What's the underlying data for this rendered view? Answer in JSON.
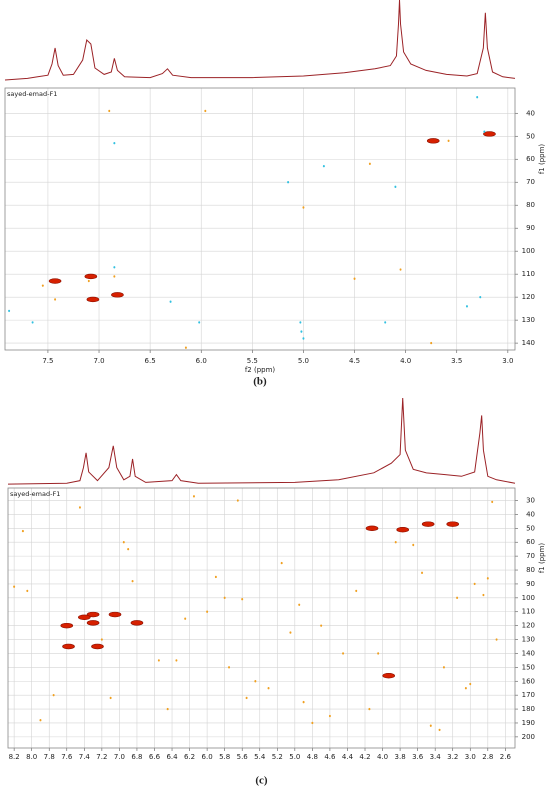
{
  "chart_data": [
    {
      "type": "scatter",
      "title": "sayed-emad-F1",
      "panel_label": "(b)",
      "xlabel": "f2 (ppm)",
      "ylabel": "f1 (ppm)",
      "xlim": [
        7.92,
        2.93
      ],
      "ylim": [
        29,
        143
      ],
      "xticks": [
        7.5,
        {
          "value": 7,
          "label": "7.0"
        },
        6.5,
        {
          "value": 6,
          "label": "6.0"
        },
        5.5,
        {
          "value": 5,
          "label": "5.0"
        },
        4.5,
        {
          "value": 4,
          "label": "4.0"
        },
        3.5,
        {
          "value": 3,
          "label": "3.0"
        }
      ],
      "yticks": [
        40,
        50,
        60,
        70,
        80,
        90,
        100,
        110,
        120,
        130,
        140
      ],
      "grid": true,
      "projection": {
        "color": "#9b2226",
        "ylim": [
          0,
          100
        ],
        "x": [
          7.92,
          7.7,
          7.6,
          7.5,
          7.46,
          7.43,
          7.4,
          7.35,
          7.25,
          7.16,
          7.12,
          7.08,
          7.04,
          6.95,
          6.88,
          6.85,
          6.82,
          6.75,
          6.5,
          6.38,
          6.33,
          6.28,
          6.1,
          5.5,
          5.0,
          4.6,
          4.3,
          4.15,
          4.09,
          4.07,
          4.06,
          4.05,
          4.02,
          3.95,
          3.8,
          3.6,
          3.4,
          3.3,
          3.24,
          3.22,
          3.2,
          3.15,
          3.05,
          2.93
        ],
        "values": [
          0,
          2,
          4,
          6,
          20,
          40,
          18,
          6,
          7,
          25,
          50,
          45,
          15,
          7,
          10,
          27,
          12,
          4,
          3,
          8,
          14,
          6,
          3,
          3,
          5,
          9,
          14,
          18,
          30,
          70,
          100,
          70,
          35,
          20,
          12,
          7,
          5,
          8,
          40,
          84,
          40,
          10,
          4,
          2
        ]
      },
      "series": [
        {
          "color": "#d62000",
          "marker": "ellipse",
          "x": [
            7.43,
            7.08,
            7.06,
            6.82,
            3.73,
            3.18
          ],
          "values": [
            113,
            111,
            121,
            119,
            52,
            49
          ]
        },
        {
          "color": "#f0a020",
          "marker": "dot",
          "x": [
            7.43,
            6.9,
            5.96,
            6.85,
            7.1,
            4.35,
            4.05,
            5.0,
            4.5,
            3.75,
            6.15,
            7.55,
            3.58
          ],
          "values": [
            121,
            39,
            39,
            111,
            113,
            62,
            108,
            81,
            112,
            140,
            142,
            115,
            52
          ]
        },
        {
          "color": "#30c0e0",
          "marker": "dot",
          "x": [
            3.3,
            5.15,
            4.8,
            4.1,
            6.85,
            6.85,
            6.3,
            7.88,
            7.65,
            6.02,
            5.03,
            5.02,
            5.0,
            4.2,
            3.4,
            3.27,
            3.23
          ],
          "values": [
            33,
            70,
            63,
            72,
            53,
            107,
            122,
            126,
            131,
            131,
            131,
            135,
            138,
            131,
            124,
            120,
            48
          ]
        }
      ]
    },
    {
      "type": "scatter",
      "title": "sayed-emad-F1",
      "panel_label": "(c)",
      "ylabel": "f1 (ppm)",
      "xlim": [
        8.27,
        2.49
      ],
      "ylim": [
        21,
        208
      ],
      "xticks": [
        8.2,
        {
          "value": 8,
          "label": "8.0"
        },
        7.8,
        7.6,
        7.4,
        7.2,
        {
          "value": 7,
          "label": "7.0"
        },
        6.8,
        6.6,
        6.4,
        6.2,
        {
          "value": 6,
          "label": "6.0"
        },
        5.8,
        5.6,
        5.4,
        5.2,
        {
          "value": 5,
          "label": "5.0"
        },
        4.8,
        4.6,
        4.4,
        4.2,
        {
          "value": 4,
          "label": "4.0"
        },
        3.8,
        3.6,
        3.4,
        3.2,
        {
          "value": 3,
          "label": "3.0"
        },
        2.8,
        2.6
      ],
      "yticks": [
        30,
        40,
        50,
        60,
        70,
        80,
        90,
        100,
        110,
        120,
        130,
        140,
        150,
        160,
        170,
        180,
        190,
        200
      ],
      "grid": true,
      "projection": {
        "color": "#9b2226",
        "ylim": [
          0,
          100
        ],
        "x": [
          8.27,
          7.6,
          7.45,
          7.41,
          7.38,
          7.35,
          7.25,
          7.12,
          7.07,
          7.03,
          6.95,
          6.88,
          6.85,
          6.82,
          6.7,
          6.4,
          6.35,
          6.3,
          6.1,
          5.0,
          4.5,
          4.1,
          3.9,
          3.8,
          3.77,
          3.74,
          3.65,
          3.5,
          3.3,
          3.1,
          2.95,
          2.89,
          2.87,
          2.85,
          2.8,
          2.7,
          2.49
        ],
        "values": [
          1,
          2,
          5,
          20,
          37,
          15,
          5,
          20,
          45,
          20,
          6,
          10,
          30,
          10,
          3,
          5,
          12,
          5,
          2,
          3,
          6,
          14,
          25,
          35,
          100,
          40,
          18,
          14,
          12,
          10,
          15,
          60,
          80,
          40,
          10,
          6,
          2
        ]
      },
      "series": [
        {
          "color": "#d62000",
          "marker": "ellipse",
          "x": [
            7.6,
            7.3,
            7.3,
            7.25,
            7.58,
            6.8,
            7.05,
            7.4,
            4.12,
            3.77,
            3.48,
            3.2,
            3.93
          ],
          "values": [
            120,
            112,
            118,
            135,
            135,
            118,
            112,
            114,
            50,
            51,
            47,
            47,
            156
          ]
        },
        {
          "color": "#f0a020",
          "marker": "dot",
          "x": [
            8.1,
            8.05,
            7.75,
            7.45,
            7.2,
            6.95,
            6.9,
            6.85,
            6.55,
            6.45,
            6.35,
            6.15,
            6.0,
            5.9,
            5.8,
            5.75,
            5.6,
            5.55,
            5.45,
            5.3,
            5.15,
            5.05,
            4.95,
            4.8,
            4.7,
            4.6,
            4.45,
            4.3,
            4.15,
            3.85,
            3.65,
            3.55,
            3.35,
            3.3,
            3.15,
            3.0,
            2.95,
            2.8,
            2.75,
            2.7,
            8.2,
            7.9,
            7.1,
            6.25,
            5.65,
            4.9,
            4.05,
            3.45,
            3.05,
            2.85
          ],
          "values": [
            52,
            95,
            170,
            35,
            130,
            60,
            65,
            88,
            145,
            180,
            145,
            27,
            110,
            85,
            100,
            150,
            101,
            172,
            160,
            165,
            75,
            125,
            105,
            190,
            120,
            185,
            140,
            95,
            180,
            60,
            62,
            82,
            195,
            150,
            100,
            162,
            90,
            86,
            31,
            130,
            92,
            188,
            172,
            115,
            30,
            175,
            140,
            192,
            165,
            98
          ]
        }
      ]
    }
  ]
}
